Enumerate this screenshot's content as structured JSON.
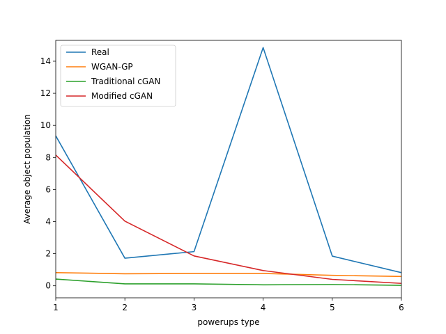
{
  "chart_data": {
    "type": "line",
    "title": "",
    "xlabel": "powerups type",
    "ylabel": "Average object population",
    "x": [
      1,
      2,
      3,
      4,
      5,
      6
    ],
    "xlim": [
      1,
      6
    ],
    "ylim": [
      -0.75,
      15.3
    ],
    "xticks": [
      1,
      2,
      3,
      4,
      5,
      6
    ],
    "yticks": [
      0,
      2,
      4,
      6,
      8,
      10,
      12,
      14
    ],
    "grid": false,
    "legend_position": "top-left",
    "series": [
      {
        "name": "Real",
        "color": "#1f77b4",
        "values": [
          9.35,
          1.72,
          2.13,
          14.85,
          1.85,
          0.82
        ]
      },
      {
        "name": "WGAN-GP",
        "color": "#ff7f0e",
        "values": [
          0.82,
          0.75,
          0.77,
          0.77,
          0.65,
          0.58
        ]
      },
      {
        "name": "Traditional cGAN",
        "color": "#2ca02c",
        "values": [
          0.42,
          0.12,
          0.12,
          0.06,
          0.08,
          0.03
        ]
      },
      {
        "name": "Modified cGAN",
        "color": "#d62728",
        "values": [
          8.15,
          4.03,
          1.86,
          0.95,
          0.4,
          0.15
        ]
      }
    ]
  }
}
